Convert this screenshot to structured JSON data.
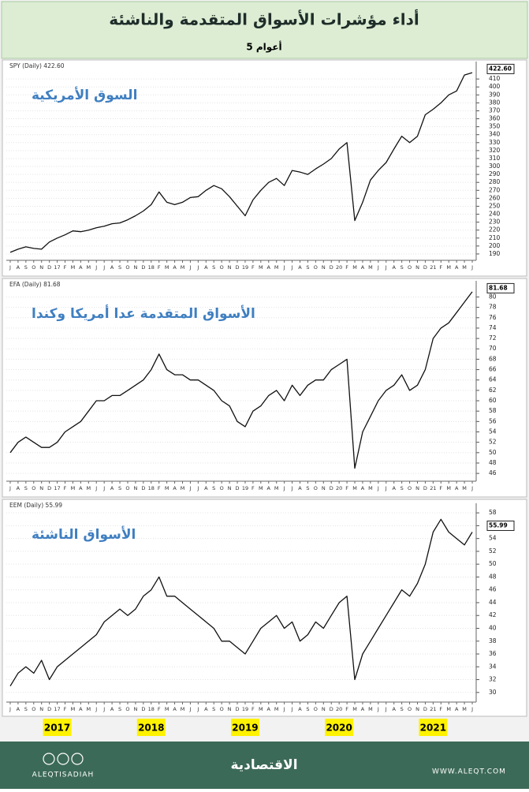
{
  "header": {
    "title": "أداء مؤشرات الأسواق المتقدمة والناشئة",
    "subtitle": "5 أعوام"
  },
  "chart_data": [
    {
      "type": "line",
      "legend": "SPY (Daily) 422.60",
      "annotation": "السوق الأمريكية",
      "color": "#111111",
      "grid": true,
      "categories": [
        "J",
        "A",
        "S",
        "O",
        "N",
        "D",
        "17",
        "F",
        "M",
        "A",
        "M",
        "J",
        "J",
        "A",
        "S",
        "O",
        "N",
        "D",
        "18",
        "F",
        "M",
        "A",
        "M",
        "J",
        "J",
        "A",
        "S",
        "O",
        "N",
        "D",
        "19",
        "F",
        "M",
        "A",
        "M",
        "J",
        "J",
        "A",
        "S",
        "O",
        "N",
        "D",
        "20",
        "F",
        "M",
        "A",
        "M",
        "J",
        "J",
        "A",
        "S",
        "O",
        "N",
        "D",
        "21",
        "F",
        "M",
        "A",
        "M",
        "J"
      ],
      "values": [
        192,
        196,
        199,
        197,
        196,
        205,
        210,
        214,
        219,
        218,
        220,
        223,
        225,
        228,
        229,
        233,
        238,
        244,
        252,
        268,
        255,
        252,
        255,
        261,
        262,
        270,
        276,
        272,
        262,
        250,
        238,
        258,
        270,
        280,
        285,
        276,
        295,
        293,
        290,
        297,
        303,
        310,
        322,
        330,
        232,
        255,
        283,
        295,
        305,
        322,
        338,
        330,
        338,
        365,
        372,
        380,
        390,
        395,
        415,
        418
      ],
      "ylim": [
        182,
        428
      ],
      "yticks": [
        190,
        200,
        210,
        220,
        230,
        240,
        250,
        260,
        270,
        280,
        290,
        300,
        310,
        320,
        330,
        340,
        350,
        360,
        370,
        380,
        390,
        400,
        410
      ],
      "last_label": {
        "value": 422.6,
        "label": "422.60"
      }
    },
    {
      "type": "line",
      "legend": "EFA (Daily) 81.68",
      "annotation": "الأسواق المتقدمة عدا أمريكا وكندا",
      "color": "#111111",
      "grid": true,
      "categories": [
        "J",
        "A",
        "S",
        "O",
        "N",
        "D",
        "17",
        "F",
        "M",
        "A",
        "M",
        "J",
        "J",
        "A",
        "S",
        "O",
        "N",
        "D",
        "18",
        "F",
        "M",
        "A",
        "M",
        "J",
        "J",
        "A",
        "S",
        "O",
        "N",
        "D",
        "19",
        "F",
        "M",
        "A",
        "M",
        "J",
        "J",
        "A",
        "S",
        "O",
        "N",
        "D",
        "20",
        "F",
        "M",
        "A",
        "M",
        "J",
        "J",
        "A",
        "S",
        "O",
        "N",
        "D",
        "21",
        "F",
        "M",
        "A",
        "M",
        "J"
      ],
      "values": [
        50,
        52,
        53,
        52,
        51,
        51,
        52,
        54,
        55,
        56,
        58,
        60,
        60,
        61,
        61,
        62,
        63,
        64,
        66,
        69,
        66,
        65,
        65,
        64,
        64,
        63,
        62,
        60,
        59,
        56,
        55,
        58,
        59,
        61,
        62,
        60,
        63,
        61,
        63,
        64,
        64,
        66,
        67,
        68,
        47,
        54,
        57,
        60,
        62,
        63,
        65,
        62,
        63,
        66,
        72,
        74,
        75,
        77,
        79,
        81
      ],
      "ylim": [
        44.5,
        82.5
      ],
      "yticks": [
        46,
        48,
        50,
        52,
        54,
        56,
        58,
        60,
        62,
        64,
        66,
        68,
        70,
        72,
        74,
        76,
        78,
        80
      ],
      "last_label": {
        "value": 81.68,
        "label": "81.68"
      }
    },
    {
      "type": "line",
      "legend": "EEM (Daily) 55.99",
      "annotation": "الأسواق الناشئة",
      "color": "#111111",
      "grid": true,
      "categories": [
        "J",
        "A",
        "S",
        "O",
        "N",
        "D",
        "17",
        "F",
        "M",
        "A",
        "M",
        "J",
        "J",
        "A",
        "S",
        "O",
        "N",
        "D",
        "18",
        "F",
        "M",
        "A",
        "M",
        "J",
        "J",
        "A",
        "S",
        "O",
        "N",
        "D",
        "19",
        "F",
        "M",
        "A",
        "M",
        "J",
        "J",
        "A",
        "S",
        "O",
        "N",
        "D",
        "20",
        "F",
        "M",
        "A",
        "M",
        "J",
        "J",
        "A",
        "S",
        "O",
        "N",
        "D",
        "21",
        "F",
        "M",
        "A",
        "M",
        "J"
      ],
      "values": [
        31,
        33,
        34,
        33,
        35,
        32,
        34,
        35,
        36,
        37,
        38,
        39,
        41,
        42,
        43,
        42,
        43,
        45,
        46,
        48,
        45,
        45,
        44,
        43,
        42,
        41,
        40,
        38,
        38,
        37,
        36,
        38,
        40,
        41,
        42,
        40,
        41,
        38,
        39,
        41,
        40,
        42,
        44,
        45,
        32,
        36,
        38,
        40,
        42,
        44,
        46,
        45,
        47,
        50,
        55,
        57,
        55,
        54,
        53,
        55
      ],
      "ylim": [
        28.5,
        59
      ],
      "yticks": [
        30,
        32,
        34,
        36,
        38,
        40,
        42,
        44,
        46,
        48,
        50,
        52,
        54,
        56,
        58
      ],
      "last_label": {
        "value": 55.99,
        "label": "55.99"
      }
    }
  ],
  "year_labels": [
    "2017",
    "2018",
    "2019",
    "2020",
    "2021"
  ],
  "footer": {
    "handle": "ALEQTISADIAH",
    "brand": "الاقتصادية",
    "site": "WWW.ALEQT.COM"
  }
}
